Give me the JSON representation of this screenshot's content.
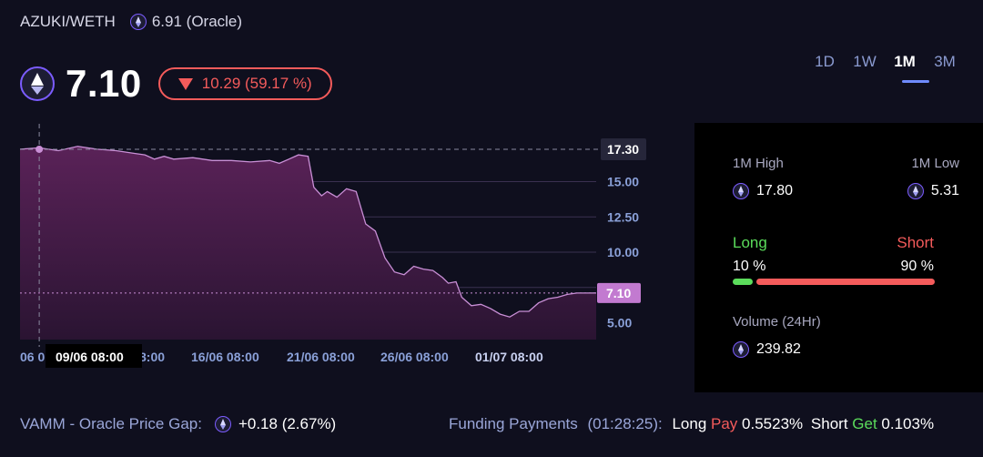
{
  "header": {
    "pair": "AZUKI/WETH",
    "oracle_text": "6.91 (Oracle)",
    "price": "7.10",
    "change_text": "10.29 (59.17 %)",
    "change_direction": "down"
  },
  "timeframes": [
    {
      "label": "1D",
      "active": false
    },
    {
      "label": "1W",
      "active": false
    },
    {
      "label": "1M",
      "active": true
    },
    {
      "label": "3M",
      "active": false
    }
  ],
  "chart": {
    "type": "area",
    "crosshair_date_label": "09/06 08:00",
    "crosshair_price_label": "17.30",
    "current_price_label": "7.10",
    "x_tick_labels": [
      "06 0",
      "8:00",
      "16/06 08:00",
      "21/06 08:00",
      "26/06 08:00",
      "01/07 08:00"
    ],
    "y_tick_labels": [
      "15.00",
      "12.50",
      "10.00",
      "5.00"
    ],
    "y_ticks": [
      15.0,
      12.5,
      10.0,
      5.0
    ],
    "ylim": [
      3.8,
      18.2
    ],
    "x_days_range": [
      0,
      30
    ],
    "x": [
      0,
      1,
      2,
      3,
      4,
      5,
      6,
      6.5,
      7,
      7.5,
      8,
      9,
      10,
      11,
      12,
      13,
      13.5,
      14,
      14.5,
      15,
      15.3,
      15.7,
      16,
      16.5,
      17,
      17.5,
      18,
      18.5,
      19,
      19.5,
      20,
      20.5,
      21,
      21.5,
      22,
      22.3,
      22.7,
      23,
      23.5,
      24,
      24.5,
      25,
      25.5,
      26,
      26.5,
      27,
      27.5,
      28,
      28.5,
      29,
      29.5,
      30
    ],
    "y": [
      17.3,
      17.4,
      17.2,
      17.5,
      17.3,
      17.2,
      17.0,
      16.9,
      16.6,
      16.8,
      16.6,
      16.7,
      16.5,
      16.5,
      16.4,
      16.5,
      16.3,
      16.6,
      16.9,
      16.8,
      14.6,
      14.0,
      14.3,
      13.9,
      14.5,
      14.3,
      12.0,
      11.5,
      9.6,
      8.6,
      8.4,
      9.0,
      8.8,
      8.7,
      8.2,
      7.8,
      7.9,
      6.8,
      6.2,
      6.3,
      6.0,
      5.6,
      5.4,
      5.8,
      5.8,
      6.4,
      6.7,
      6.8,
      7.0,
      7.1,
      7.1,
      7.1
    ],
    "colors": {
      "line": "#c98fd6",
      "fill_top": "#5a2258",
      "fill_bottom": "#2a1432",
      "dashed": "#8a8aa0",
      "price_tag_bg": "#c27ad0"
    }
  },
  "stats": {
    "high_label": "1M High",
    "high_value": "17.80",
    "low_label": "1M Low",
    "low_value": "5.31",
    "long_label": "Long",
    "short_label": "Short",
    "long_pct_text": "10 %",
    "short_pct_text": "90 %",
    "long_ratio": 0.1,
    "volume_label": "Volume (24Hr)",
    "volume_value": "239.82",
    "colors": {
      "long": "#5bdc5b",
      "short": "#f45b5b"
    }
  },
  "footer": {
    "gap_label": "VAMM - Oracle Price Gap:",
    "gap_value": "+0.18 (2.67%)",
    "funding_label": "Funding Payments",
    "funding_timer": "(01:28:25):",
    "long_word": "Long",
    "pay_word": "Pay",
    "long_rate": "0.5523%",
    "short_word": "Short",
    "get_word": "Get",
    "short_rate": "0.103%"
  }
}
